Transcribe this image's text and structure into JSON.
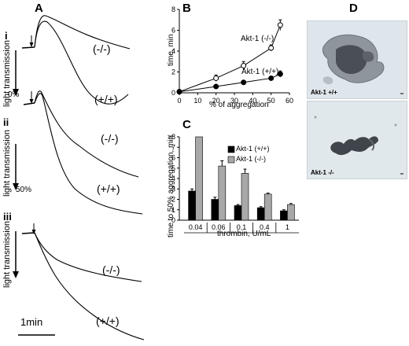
{
  "panels": {
    "A": "A",
    "B": "B",
    "C": "C",
    "D": "D"
  },
  "panelA": {
    "sub_i": "i",
    "sub_ii": "ii",
    "sub_iii": "iii",
    "axis_label": "light transmission",
    "tick_0": "0%",
    "tick_50": "50%",
    "ko_label": "(-/-)",
    "wt_label": "(+/+)",
    "scale_bar": "1min"
  },
  "panelB": {
    "ylabel": "time, min",
    "xlabel": "% of aggregation",
    "xticks": [
      "0",
      "10",
      "20",
      "30",
      "40",
      "50",
      "60"
    ],
    "yticks": [
      "0",
      "2",
      "4",
      "6",
      "8"
    ],
    "ko_label": "Akt-1 (-/-)",
    "wt_label": "Akt-1 (+/+)"
  },
  "panelC": {
    "ylabel": "time to 50% aggregation, min",
    "xlabel": "thrombin, U/mL",
    "yticks": [
      "0",
      "1",
      "2",
      "3",
      "4",
      "5",
      "6",
      "7",
      ">8"
    ],
    "categories": [
      "0.04",
      "0.06",
      "0.1",
      "0.4",
      "1"
    ],
    "legend_wt": "Akt-1 (+/+)",
    "legend_ko": "Akt-1 (-/-)"
  },
  "panelD": {
    "top_caption": "Akt-1 +/+",
    "bottom_caption": "Akt-1 -/-"
  },
  "colors": {
    "wt_bar": "#000000",
    "ko_bar": "#a8a8a8",
    "micro_bg": "#dde5ea",
    "cell_dark": "#4a4f55"
  },
  "chart_data": [
    {
      "type": "line",
      "panel": "B",
      "xlabel": "% of aggregation",
      "ylabel": "time, min",
      "xlim": [
        0,
        60
      ],
      "ylim": [
        0,
        8
      ],
      "series": [
        {
          "name": "Akt-1 (-/-)",
          "marker": "open-circle",
          "x": [
            0,
            20,
            35,
            50,
            55
          ],
          "y": [
            0.1,
            1.4,
            2.6,
            4.3,
            6.5
          ],
          "err": [
            0.1,
            0.3,
            0.4,
            0.3,
            0.5
          ]
        },
        {
          "name": "Akt-1 (+/+)",
          "marker": "filled-circle",
          "x": [
            0,
            20,
            35,
            50,
            55
          ],
          "y": [
            0.1,
            0.6,
            1.0,
            1.4,
            1.8
          ],
          "err": [
            0.05,
            0.1,
            0.1,
            0.15,
            0.3
          ]
        }
      ]
    },
    {
      "type": "bar",
      "panel": "C",
      "xlabel": "thrombin, U/mL",
      "ylabel": "time to 50% aggregation, min",
      "ylim": [
        0,
        8
      ],
      "categories": [
        "0.04",
        "0.06",
        "0.1",
        "0.4",
        "1"
      ],
      "series": [
        {
          "name": "Akt-1 (+/+)",
          "values": [
            2.8,
            2.0,
            1.4,
            1.2,
            0.9
          ],
          "err": [
            0.2,
            0.2,
            0.1,
            0.1,
            0.1
          ]
        },
        {
          "name": "Akt-1 (-/-)",
          "values": [
            8.0,
            5.2,
            4.5,
            2.5,
            1.5
          ],
          "err": [
            0,
            0.5,
            0.4,
            0.1,
            0.1
          ]
        }
      ]
    },
    {
      "type": "line",
      "panel": "A",
      "subpanels": [
        "i",
        "ii",
        "iii"
      ],
      "series": [
        {
          "name": "(-/-)",
          "traces": 3
        },
        {
          "name": "(+/+)",
          "traces": 3
        }
      ]
    }
  ]
}
